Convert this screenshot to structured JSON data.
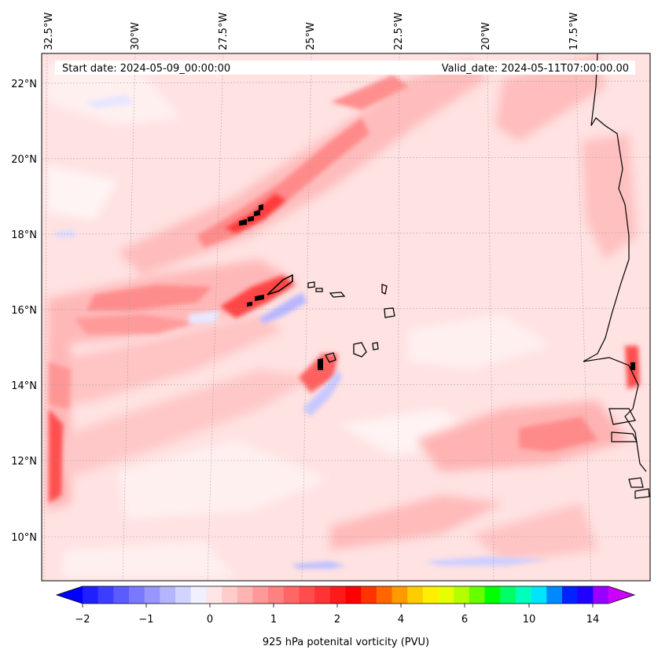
{
  "map": {
    "start_label": "Start date: 2024-05-09_00:00:00",
    "valid_label": "Valid_date: 2024-05-11T07:00:00.00",
    "lon_ticks": [
      "32.5°W",
      "30°W",
      "27.5°W",
      "25°W",
      "22.5°W",
      "20°W",
      "17.5°W"
    ],
    "lat_ticks": [
      "22°N",
      "20°N",
      "18°N",
      "16°N",
      "14°N",
      "12°N",
      "10°N"
    ],
    "extent": {
      "lon_min": -32.7,
      "lon_max": -15.4,
      "lat_min": 8.9,
      "lat_max": 22.8
    }
  },
  "colorbar": {
    "label": "925 hPa potenital vorticity (PVU)",
    "tick_labels": [
      "−2",
      "−1",
      "0",
      "1",
      "2",
      "4",
      "6",
      "10",
      "14"
    ],
    "colors": [
      "#1f1fff",
      "#3d3dff",
      "#5b5bff",
      "#7979ff",
      "#9797ff",
      "#b5b5ff",
      "#d3d3ff",
      "#f0f0ff",
      "#ffe6e6",
      "#ffcccc",
      "#ffb3b3",
      "#ff9999",
      "#ff8080",
      "#ff6666",
      "#ff4d4d",
      "#ff3333",
      "#ff1a1a",
      "#ff0000",
      "#ff3300",
      "#ff6600",
      "#ff9900",
      "#ffcc00",
      "#ffee00",
      "#e5ff00",
      "#b3ff00",
      "#66ff00",
      "#00ff00",
      "#00ff66",
      "#00ffbb",
      "#00e5ff",
      "#0088ff",
      "#0022ff",
      "#2200ff",
      "#9900ff"
    ],
    "under_color": "#0000ff",
    "over_color": "#cc00ff"
  }
}
